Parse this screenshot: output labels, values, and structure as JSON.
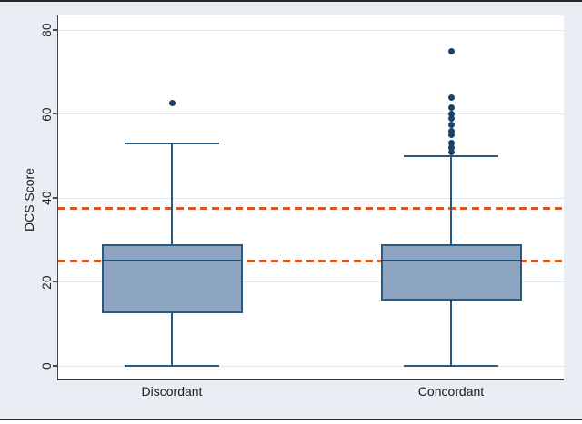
{
  "figure": {
    "bg_color": "#e8eef4",
    "plot_bg": "#ffffff",
    "top_bottom_rule_color": "#262626"
  },
  "chart_data": {
    "type": "box",
    "title": "",
    "xlabel": "",
    "ylabel": "DCS Score",
    "y_ticks": [
      0,
      20,
      40,
      60,
      80
    ],
    "y_range": [
      -3.3,
      83.5
    ],
    "grid": true,
    "legend_position": "none",
    "reference_lines": [
      {
        "value": 25,
        "style": "dashed",
        "color": "#d95420"
      },
      {
        "value": 37.5,
        "style": "dashed",
        "color": "#d95420"
      }
    ],
    "groups": [
      {
        "label": "Discordant",
        "whisker_low": 0,
        "q1": 12.5,
        "median": 25,
        "q3": 29,
        "whisker_high": 53,
        "outliers": [
          62.5
        ]
      },
      {
        "label": "Concordant",
        "whisker_low": 0,
        "q1": 15.5,
        "median": 25,
        "q3": 29,
        "whisker_high": 50,
        "outliers": [
          51,
          52,
          53,
          55,
          56,
          57.5,
          59,
          60,
          61.5,
          64,
          75
        ]
      }
    ],
    "colors": {
      "box_fill": "#8da5c1",
      "box_border": "#2a5a80",
      "median_line": "#1f4e75",
      "outlier_dot": "#17426b",
      "reference_line": "#d95420",
      "gridline": "#dbe7f1",
      "axis": "#454545",
      "tick_text": "#1f1f1f"
    }
  }
}
